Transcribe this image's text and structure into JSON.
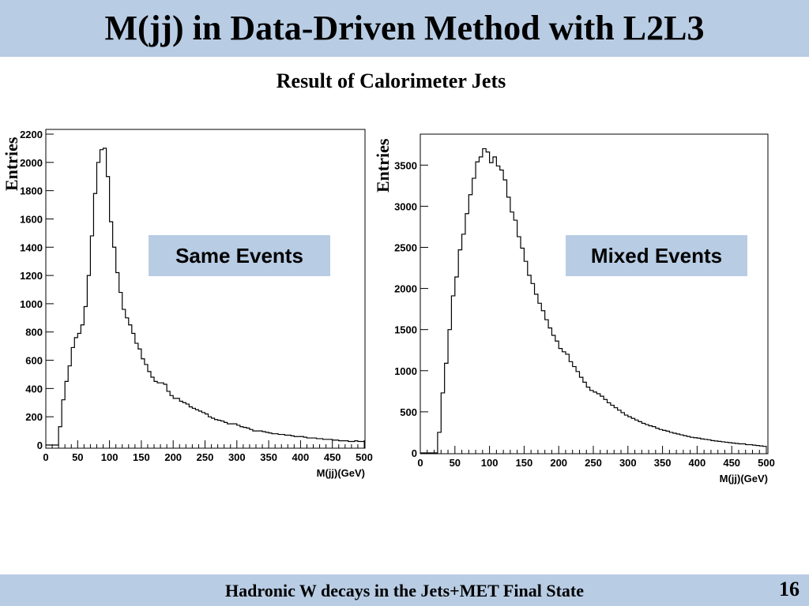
{
  "slide": {
    "title": "M(jj) in Data-Driven Method with L2L3",
    "subtitle": "Result of Calorimeter Jets",
    "footer": "Hadronic W decays in the Jets+MET Final State",
    "page_number": "16",
    "colors": {
      "band": "#b8cce4",
      "text": "#000000",
      "histogram": "#000000"
    }
  },
  "chart_data": [
    {
      "type": "histogram",
      "title": "",
      "annotation": "Same Events",
      "xlabel": "M(jj)(GeV)",
      "ylabel": "Entries",
      "xlim": [
        0,
        500
      ],
      "ylim": [
        0,
        2200
      ],
      "xticks": [
        0,
        50,
        100,
        150,
        200,
        250,
        300,
        350,
        400,
        450,
        500
      ],
      "yticks": [
        0,
        200,
        400,
        600,
        800,
        1000,
        1200,
        1400,
        1600,
        1800,
        2000,
        2200
      ],
      "bin_width": 5,
      "bin_start": 0,
      "values": [
        0,
        0,
        0,
        0,
        130,
        320,
        450,
        560,
        690,
        760,
        790,
        850,
        980,
        1200,
        1480,
        1780,
        2000,
        2090,
        2100,
        1900,
        1580,
        1400,
        1220,
        1080,
        960,
        900,
        850,
        790,
        720,
        680,
        610,
        570,
        520,
        480,
        450,
        440,
        440,
        430,
        380,
        350,
        330,
        330,
        310,
        300,
        290,
        270,
        260,
        250,
        240,
        230,
        220,
        200,
        190,
        180,
        175,
        170,
        160,
        150,
        150,
        150,
        140,
        130,
        125,
        120,
        110,
        100,
        100,
        100,
        95,
        90,
        85,
        80,
        80,
        75,
        75,
        70,
        70,
        65,
        60,
        60,
        60,
        55,
        50,
        50,
        50,
        45,
        45,
        40,
        40,
        40,
        35,
        35,
        30,
        30,
        30,
        25,
        25,
        30,
        25,
        25
      ]
    },
    {
      "type": "histogram",
      "title": "",
      "annotation": "Mixed Events",
      "xlabel": "M(jj)(GeV)",
      "ylabel": "Entries",
      "xlim": [
        0,
        500
      ],
      "ylim": [
        0,
        3800
      ],
      "xticks": [
        0,
        50,
        100,
        150,
        200,
        250,
        300,
        350,
        400,
        450,
        500
      ],
      "yticks": [
        0,
        500,
        1000,
        1500,
        2000,
        2500,
        3000,
        3500
      ],
      "bin_width": 5,
      "bin_start": 0,
      "values": [
        0,
        0,
        0,
        0,
        0,
        250,
        730,
        1090,
        1500,
        1910,
        2140,
        2470,
        2660,
        2910,
        3140,
        3340,
        3540,
        3600,
        3700,
        3660,
        3530,
        3600,
        3490,
        3440,
        3320,
        3110,
        2930,
        2830,
        2630,
        2490,
        2330,
        2160,
        2060,
        1930,
        1820,
        1730,
        1620,
        1520,
        1430,
        1360,
        1270,
        1230,
        1200,
        1110,
        1050,
        990,
        920,
        860,
        800,
        760,
        740,
        720,
        690,
        650,
        610,
        580,
        550,
        520,
        490,
        460,
        440,
        420,
        400,
        380,
        360,
        345,
        330,
        320,
        300,
        285,
        275,
        265,
        250,
        240,
        230,
        220,
        210,
        200,
        190,
        185,
        180,
        170,
        165,
        160,
        150,
        145,
        140,
        135,
        130,
        125,
        120,
        115,
        110,
        110,
        100,
        100,
        95,
        90,
        85,
        80
      ]
    }
  ]
}
